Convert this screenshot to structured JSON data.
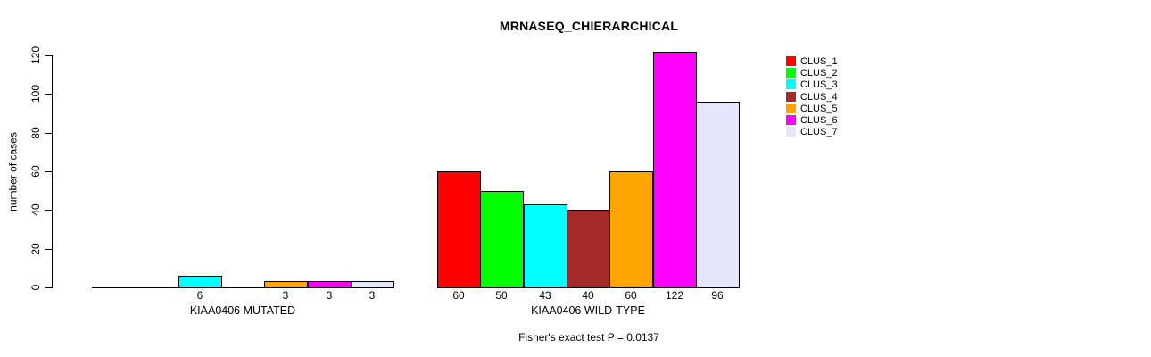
{
  "title": "MRNASEQ_CHIERARCHICAL",
  "y_axis_label": "number of cases",
  "annotation": "Fisher's exact test P = 0.0137",
  "chart_data": {
    "type": "bar",
    "title": "MRNASEQ_CHIERARCHICAL",
    "xlabel": "",
    "ylabel": "number of cases",
    "ylim": [
      0,
      120
    ],
    "yticks": [
      0,
      20,
      40,
      60,
      80,
      100,
      120
    ],
    "grid": false,
    "legend_position": "right-outside",
    "legend": [
      {
        "label": "CLUS_1",
        "color": "#FF0000"
      },
      {
        "label": "CLUS_2",
        "color": "#00FF00"
      },
      {
        "label": "CLUS_3",
        "color": "#00FFFF"
      },
      {
        "label": "CLUS_4",
        "color": "#A52A2A"
      },
      {
        "label": "CLUS_5",
        "color": "#FFA500"
      },
      {
        "label": "CLUS_6",
        "color": "#FF00FF"
      },
      {
        "label": "CLUS_7",
        "color": "#E6E6FA"
      }
    ],
    "categories": [
      "CLUS_1",
      "CLUS_2",
      "CLUS_3",
      "CLUS_4",
      "CLUS_5",
      "CLUS_6",
      "CLUS_7"
    ],
    "groups": [
      {
        "label": "KIAA0406 MUTATED",
        "values": [
          0,
          0,
          6,
          0,
          3,
          3,
          3
        ]
      },
      {
        "label": "KIAA0406 WILD-TYPE",
        "values": [
          60,
          50,
          43,
          40,
          60,
          122,
          96
        ]
      }
    ],
    "bar_value_labels": "shown under each non-zero bar",
    "annotation": "Fisher's exact test P = 0.0137"
  }
}
